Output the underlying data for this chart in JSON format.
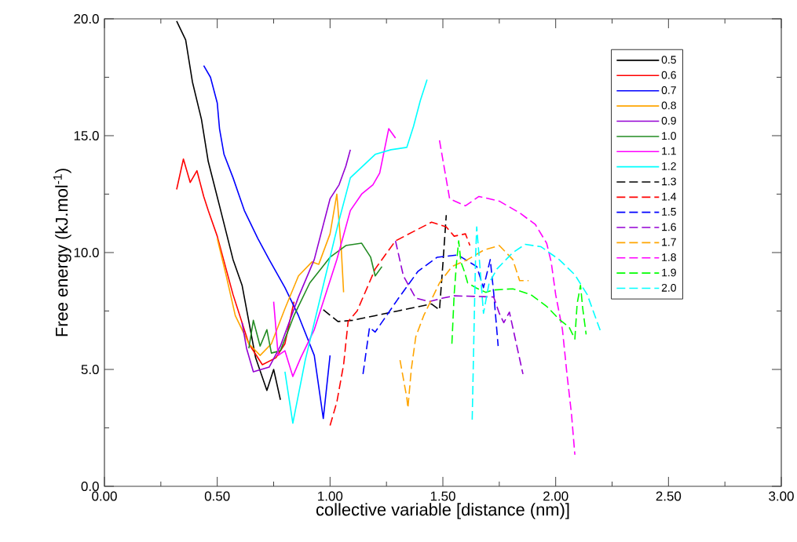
{
  "chart_data": {
    "type": "line",
    "xlabel": "collective variable [distance (nm)]",
    "ylabel": "Free energy (kJ.mol$^{-1}$)",
    "xlim": [
      0,
      3
    ],
    "ylim": [
      0,
      20
    ],
    "xticks": [
      {
        "value": 0,
        "label": "0.00"
      },
      {
        "value": 0.5,
        "label": "0.50"
      },
      {
        "value": 1,
        "label": "1.00"
      },
      {
        "value": 1.5,
        "label": "1.50"
      },
      {
        "value": 2,
        "label": "2.00"
      },
      {
        "value": 2.5,
        "label": "2.50"
      },
      {
        "value": 3,
        "label": "3.00"
      }
    ],
    "yticks": [
      {
        "value": 0,
        "label": "0.0"
      },
      {
        "value": 5,
        "label": "5.0"
      },
      {
        "value": 10,
        "label": "10.0"
      },
      {
        "value": 15,
        "label": "15.0"
      },
      {
        "value": 20,
        "label": "20.0"
      }
    ],
    "legend": "top right",
    "series": [
      {
        "name": "0.5",
        "color": "#000000",
        "line_style": "solid",
        "x": [
          0.32,
          0.36,
          0.39,
          0.43,
          0.46,
          0.51,
          0.57,
          0.61,
          0.67,
          0.72,
          0.75,
          0.78
        ],
        "values": [
          19.9,
          19.1,
          17.3,
          15.7,
          13.9,
          12.0,
          9.7,
          8.6,
          5.5,
          4.1,
          5.0,
          3.7
        ]
      },
      {
        "name": "0.6",
        "color": "#ff0000",
        "line_style": "solid",
        "x": [
          0.32,
          0.35,
          0.38,
          0.41,
          0.44,
          0.46,
          0.5,
          0.57,
          0.64,
          0.7,
          0.76,
          0.8,
          0.84
        ],
        "values": [
          12.7,
          14.0,
          13.0,
          13.5,
          12.4,
          11.8,
          10.7,
          8.2,
          6.1,
          5.2,
          5.5,
          6.1,
          7.9
        ]
      },
      {
        "name": "0.7",
        "color": "#0000ff",
        "line_style": "solid",
        "x": [
          0.44,
          0.47,
          0.5,
          0.51,
          0.53,
          0.57,
          0.62,
          0.68,
          0.73,
          0.8,
          0.86,
          0.93,
          0.97,
          1.0
        ],
        "values": [
          18.0,
          17.5,
          16.4,
          15.3,
          14.2,
          13.2,
          11.8,
          10.6,
          9.7,
          8.5,
          7.3,
          5.6,
          2.9,
          5.6
        ]
      },
      {
        "name": "0.8",
        "color": "#ffa500",
        "line_style": "solid",
        "x": [
          0.5,
          0.54,
          0.58,
          0.64,
          0.69,
          0.74,
          0.8,
          0.86,
          0.92,
          0.95,
          1.0,
          1.03,
          1.05,
          1.06
        ],
        "values": [
          10.6,
          9.0,
          7.3,
          6.1,
          5.6,
          6.1,
          7.6,
          9.0,
          9.6,
          9.5,
          10.8,
          12.5,
          10.1,
          8.3
        ]
      },
      {
        "name": "0.9",
        "color": "#9400d3",
        "line_style": "solid",
        "x": [
          0.61,
          0.63,
          0.66,
          0.73,
          0.78,
          0.86,
          0.93,
          1.0,
          1.04,
          1.07,
          1.09
        ],
        "values": [
          7.0,
          5.9,
          4.9,
          5.1,
          6.0,
          8.1,
          9.7,
          12.3,
          12.9,
          13.7,
          14.4
        ]
      },
      {
        "name": "1.0",
        "color": "#228b22",
        "line_style": "solid",
        "x": [
          0.64,
          0.66,
          0.69,
          0.72,
          0.74,
          0.78,
          0.84,
          0.91,
          1.0,
          1.07,
          1.14,
          1.18,
          1.2,
          1.23
        ],
        "values": [
          5.9,
          7.1,
          6.0,
          6.7,
          5.7,
          5.8,
          7.3,
          8.7,
          9.8,
          10.3,
          10.4,
          9.8,
          9.0,
          9.4
        ]
      },
      {
        "name": "1.1",
        "color": "#ff00ff",
        "line_style": "solid",
        "x": [
          0.75,
          0.77,
          0.8,
          0.835,
          0.87,
          0.93,
          1.03,
          1.09,
          1.14,
          1.19,
          1.22,
          1.26,
          1.29
        ],
        "values": [
          7.9,
          5.6,
          5.8,
          4.7,
          5.5,
          6.7,
          9.7,
          11.8,
          12.5,
          12.9,
          13.4,
          15.3,
          14.9
        ]
      },
      {
        "name": "1.2",
        "color": "#00ffff",
        "line_style": "solid",
        "x": [
          0.8,
          0.835,
          0.89,
          0.97,
          1.035,
          1.09,
          1.2,
          1.27,
          1.34,
          1.37,
          1.4,
          1.43
        ],
        "values": [
          4.9,
          2.7,
          5.4,
          8.6,
          11.2,
          13.2,
          14.2,
          14.4,
          14.5,
          15.4,
          16.5,
          17.4
        ]
      },
      {
        "name": "1.3",
        "color": "#000000",
        "line_style": "dashed",
        "x": [
          0.97,
          1.035,
          1.1,
          1.2,
          1.3,
          1.4,
          1.45,
          1.485,
          1.5,
          1.515
        ],
        "values": [
          7.55,
          7.05,
          7.1,
          7.3,
          7.5,
          7.7,
          7.8,
          7.55,
          9.5,
          11.6
        ]
      },
      {
        "name": "1.4",
        "color": "#ff0000",
        "line_style": "dashed",
        "x": [
          1.0,
          1.03,
          1.06,
          1.08,
          1.12,
          1.2,
          1.29,
          1.37,
          1.45,
          1.515,
          1.55,
          1.6,
          1.62
        ],
        "values": [
          2.6,
          3.6,
          5.2,
          7.05,
          7.5,
          9.3,
          10.5,
          10.9,
          11.3,
          11.1,
          10.7,
          10.8,
          10.3
        ]
      },
      {
        "name": "1.5",
        "color": "#0000ff",
        "line_style": "dashed",
        "x": [
          1.146,
          1.175,
          1.2,
          1.3,
          1.39,
          1.475,
          1.566,
          1.65,
          1.68,
          1.71,
          1.725,
          1.745
        ],
        "values": [
          4.8,
          6.8,
          6.6,
          8.0,
          9.2,
          9.8,
          9.9,
          9.4,
          8.5,
          9.7,
          8.3,
          6.0
        ]
      },
      {
        "name": "1.6",
        "color": "#9400d3",
        "line_style": "dashed",
        "x": [
          1.29,
          1.325,
          1.38,
          1.44,
          1.5,
          1.55,
          1.725,
          1.75,
          1.77,
          1.795,
          1.855
        ],
        "values": [
          10.5,
          9.0,
          8.05,
          7.9,
          8.05,
          8.15,
          8.1,
          7.4,
          7.0,
          7.45,
          4.8
        ]
      },
      {
        "name": "1.7",
        "color": "#ffa500",
        "line_style": "dashed",
        "x": [
          1.31,
          1.34,
          1.345,
          1.36,
          1.38,
          1.415,
          1.485,
          1.54,
          1.61,
          1.68,
          1.75,
          1.81,
          1.84,
          1.88
        ],
        "values": [
          5.4,
          3.8,
          3.35,
          5.0,
          6.4,
          7.3,
          8.7,
          9.4,
          9.7,
          10.1,
          10.3,
          9.7,
          8.8,
          8.8
        ]
      },
      {
        "name": "1.8",
        "color": "#ff00ff",
        "line_style": "dashed",
        "x": [
          1.485,
          1.53,
          1.6,
          1.66,
          1.75,
          1.84,
          1.91,
          1.96,
          1.98,
          2.0,
          2.03,
          2.05,
          2.07,
          2.085
        ],
        "values": [
          14.8,
          12.3,
          12.0,
          12.4,
          12.2,
          11.7,
          11.2,
          10.4,
          9.6,
          8.2,
          6.7,
          4.8,
          3.1,
          1.35
        ]
      },
      {
        "name": "1.9",
        "color": "#00ff00",
        "line_style": "dashed",
        "x": [
          1.54,
          1.55,
          1.56,
          1.57,
          1.58,
          1.595,
          1.61,
          1.645,
          1.69,
          1.725,
          1.81,
          1.89,
          1.96,
          2.015,
          2.06,
          2.085,
          2.095,
          2.11,
          2.12,
          2.135
        ],
        "values": [
          6.1,
          8.2,
          9.5,
          10.5,
          9.6,
          9.2,
          8.7,
          8.5,
          8.3,
          8.4,
          8.45,
          8.2,
          7.7,
          7.15,
          6.8,
          6.3,
          7.8,
          8.6,
          7.6,
          6.5
        ]
      },
      {
        "name": "2.0",
        "color": "#00ffff",
        "line_style": "dashed",
        "x": [
          1.63,
          1.64,
          1.645,
          1.65,
          1.665,
          1.68,
          1.705,
          1.74,
          1.81,
          1.865,
          1.935,
          2.015,
          2.085,
          2.14,
          2.2
        ],
        "values": [
          2.85,
          7.6,
          9.8,
          11.1,
          9.3,
          7.4,
          8.7,
          9.3,
          10.0,
          10.35,
          10.25,
          9.7,
          9.05,
          8.2,
          6.6
        ]
      }
    ]
  }
}
